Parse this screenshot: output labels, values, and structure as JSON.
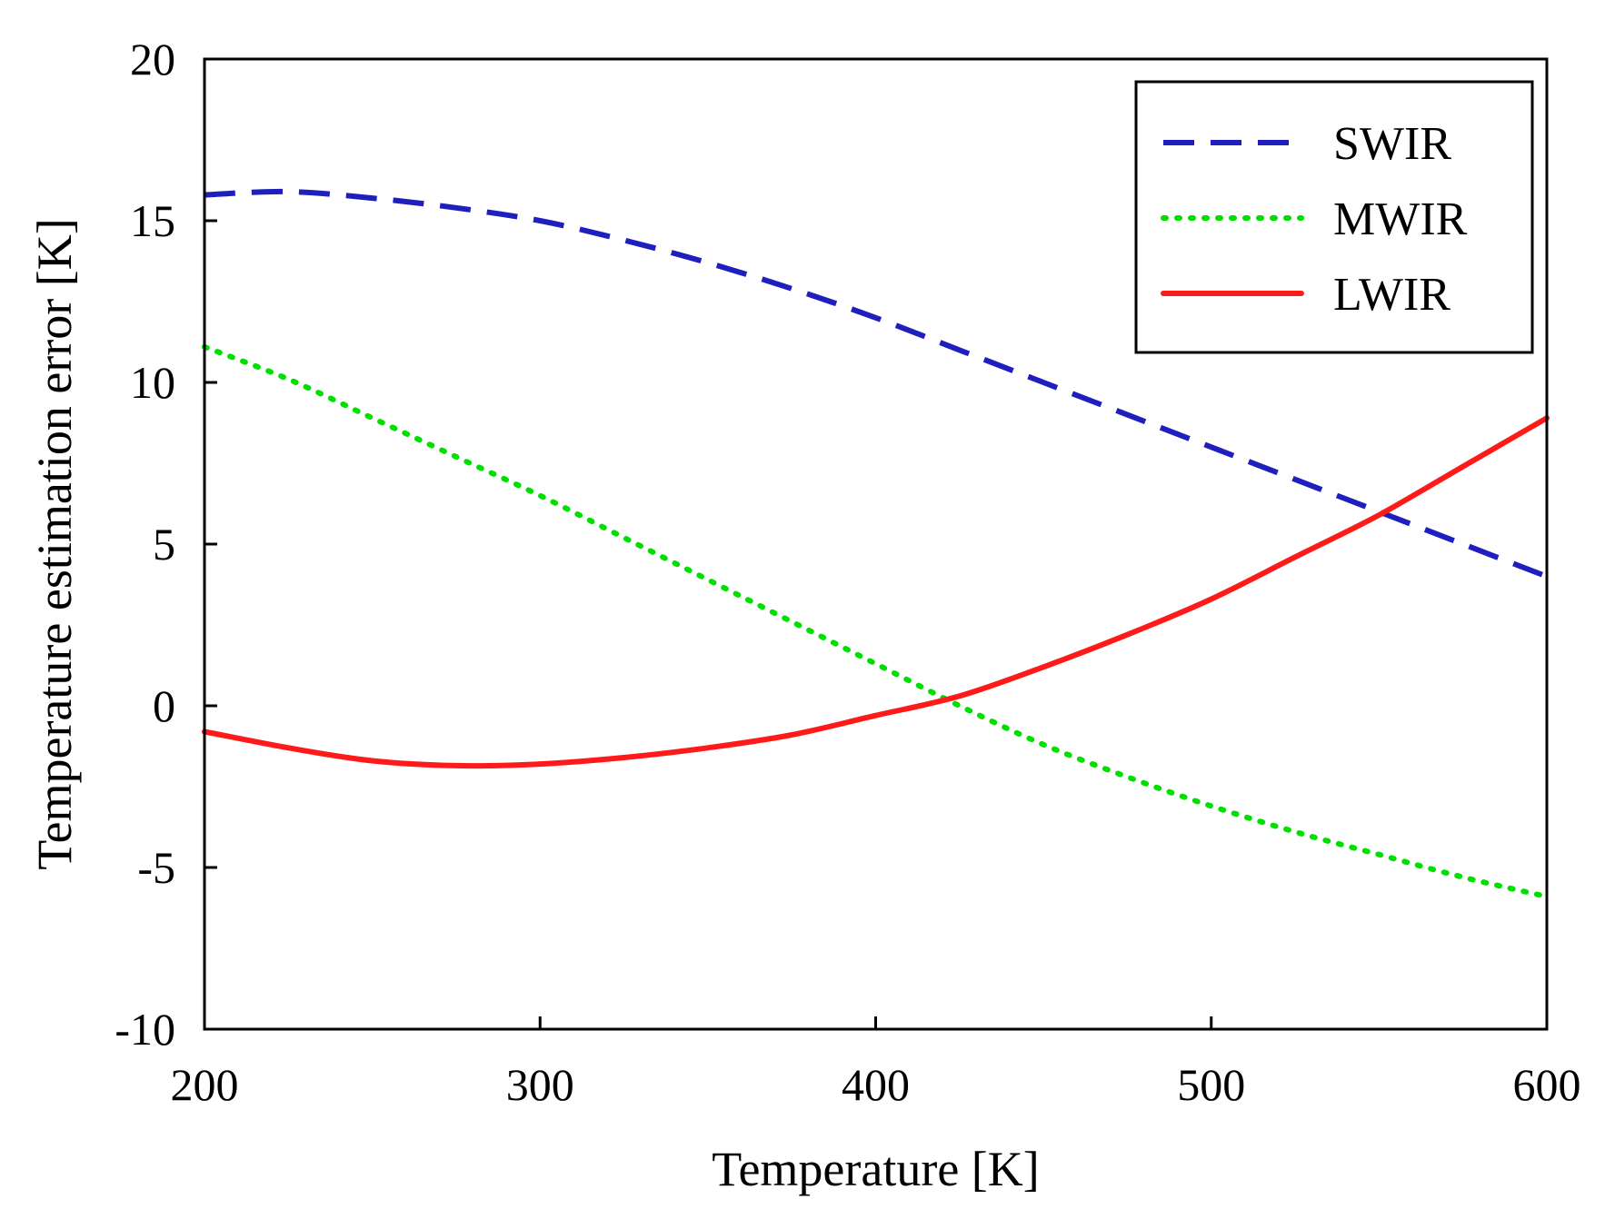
{
  "chart_data": {
    "type": "line",
    "title": "",
    "xlabel": "Temperature [K]",
    "ylabel": "Temperature estimation error [K]",
    "xlim": [
      200,
      600
    ],
    "ylim": [
      -10,
      20
    ],
    "xticks": [
      200,
      300,
      400,
      500,
      600
    ],
    "yticks": [
      -10,
      -5,
      0,
      5,
      10,
      15,
      20
    ],
    "xtick_labels": [
      "200",
      "300",
      "400",
      "500",
      "600"
    ],
    "ytick_labels": [
      "-10",
      "-5",
      "0",
      "5",
      "10",
      "15",
      "20"
    ],
    "grid": false,
    "legend_position": "top-right",
    "x": [
      200,
      225,
      250,
      275,
      300,
      325,
      350,
      375,
      400,
      425,
      450,
      475,
      500,
      525,
      550,
      575,
      600
    ],
    "series": [
      {
        "name": "SWIR",
        "color": "#1f1fbf",
        "style": "dashed",
        "values": [
          15.8,
          15.9,
          15.7,
          15.4,
          15.0,
          14.4,
          13.7,
          12.9,
          12.0,
          11.0,
          10.0,
          9.0,
          8.0,
          7.0,
          6.0,
          5.0,
          4.0
        ]
      },
      {
        "name": "MWIR",
        "color": "#00e000",
        "style": "dotted",
        "values": [
          11.1,
          10.1,
          8.9,
          7.7,
          6.5,
          5.2,
          3.9,
          2.6,
          1.3,
          0.0,
          -1.2,
          -2.2,
          -3.1,
          -3.9,
          -4.6,
          -5.3,
          -5.9
        ]
      },
      {
        "name": "LWIR",
        "color": "#ff1a1a",
        "style": "solid",
        "values": [
          -0.8,
          -1.3,
          -1.7,
          -1.85,
          -1.8,
          -1.6,
          -1.3,
          -0.9,
          -0.3,
          0.3,
          1.2,
          2.2,
          3.3,
          4.6,
          5.9,
          7.4,
          8.9
        ]
      }
    ]
  }
}
